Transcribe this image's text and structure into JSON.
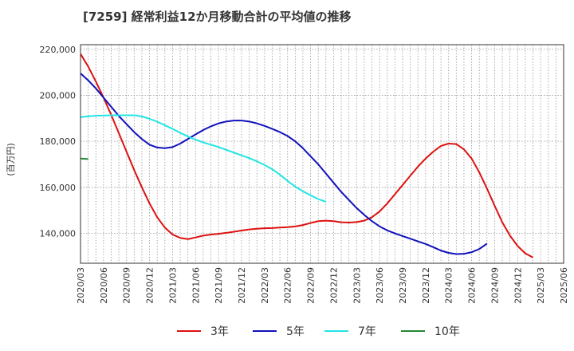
{
  "chart_data": {
    "type": "line",
    "title": "[7259]  経常利益12か月移動合計の平均値の推移",
    "ylabel": "(百万円)",
    "xlabel": "",
    "ylim": [
      127000,
      222000
    ],
    "yticks": [
      140000,
      160000,
      180000,
      200000,
      220000
    ],
    "ytick_labels": [
      "140,000",
      "160,000",
      "180,000",
      "200,000",
      "220,000"
    ],
    "xlim": [
      0,
      63
    ],
    "xtick_labels": [
      "2020/03",
      "2020/06",
      "2020/09",
      "2020/12",
      "2021/03",
      "2021/06",
      "2021/09",
      "2021/12",
      "2022/03",
      "2022/06",
      "2022/09",
      "2022/12",
      "2023/03",
      "2023/06",
      "2023/09",
      "2023/12",
      "2024/03",
      "2024/06",
      "2024/09",
      "2024/12",
      "2025/03",
      "2025/06"
    ],
    "grid": true,
    "legend_position": "bottom",
    "series": [
      {
        "name": "3年",
        "color": "#dd1111",
        "points": [
          [
            0,
            218000
          ],
          [
            1,
            212500
          ],
          [
            2,
            206000
          ],
          [
            3,
            199000
          ],
          [
            4,
            191500
          ],
          [
            5,
            183500
          ],
          [
            6,
            175500
          ],
          [
            7,
            167500
          ],
          [
            8,
            160000
          ],
          [
            9,
            153000
          ],
          [
            10,
            147000
          ],
          [
            11,
            142500
          ],
          [
            12,
            139500
          ],
          [
            13,
            138000
          ],
          [
            14,
            137500
          ],
          [
            15,
            138200
          ],
          [
            16,
            139000
          ],
          [
            17,
            139500
          ],
          [
            18,
            139800
          ],
          [
            19,
            140200
          ],
          [
            20,
            140700
          ],
          [
            21,
            141200
          ],
          [
            22,
            141700
          ],
          [
            23,
            142000
          ],
          [
            24,
            142200
          ],
          [
            25,
            142300
          ],
          [
            26,
            142500
          ],
          [
            27,
            142700
          ],
          [
            28,
            143000
          ],
          [
            29,
            143600
          ],
          [
            30,
            144500
          ],
          [
            31,
            145300
          ],
          [
            32,
            145500
          ],
          [
            33,
            145300
          ],
          [
            34,
            144800
          ],
          [
            35,
            144700
          ],
          [
            36,
            144900
          ],
          [
            37,
            145500
          ],
          [
            38,
            147000
          ],
          [
            39,
            149500
          ],
          [
            40,
            153000
          ],
          [
            41,
            157000
          ],
          [
            42,
            161000
          ],
          [
            43,
            165000
          ],
          [
            44,
            169000
          ],
          [
            45,
            172500
          ],
          [
            46,
            175500
          ],
          [
            47,
            178000
          ],
          [
            48,
            179000
          ],
          [
            49,
            178800
          ],
          [
            50,
            176500
          ],
          [
            51,
            172500
          ],
          [
            52,
            166500
          ],
          [
            53,
            159500
          ],
          [
            54,
            152000
          ],
          [
            55,
            144800
          ],
          [
            56,
            139000
          ],
          [
            57,
            134500
          ],
          [
            58,
            131300
          ],
          [
            59,
            129500
          ]
        ]
      },
      {
        "name": "5年",
        "color": "#1111bb",
        "points": [
          [
            0,
            209500
          ],
          [
            1,
            206500
          ],
          [
            2,
            203000
          ],
          [
            3,
            199000
          ],
          [
            4,
            195000
          ],
          [
            5,
            191000
          ],
          [
            6,
            187500
          ],
          [
            7,
            184000
          ],
          [
            8,
            181000
          ],
          [
            9,
            178500
          ],
          [
            10,
            177300
          ],
          [
            11,
            177000
          ],
          [
            12,
            177500
          ],
          [
            13,
            179000
          ],
          [
            14,
            181000
          ],
          [
            15,
            183000
          ],
          [
            16,
            184900
          ],
          [
            17,
            186500
          ],
          [
            18,
            187800
          ],
          [
            19,
            188600
          ],
          [
            20,
            189000
          ],
          [
            21,
            189000
          ],
          [
            22,
            188600
          ],
          [
            23,
            187800
          ],
          [
            24,
            186700
          ],
          [
            25,
            185400
          ],
          [
            26,
            184000
          ],
          [
            27,
            182300
          ],
          [
            28,
            180000
          ],
          [
            29,
            177000
          ],
          [
            30,
            173500
          ],
          [
            31,
            170000
          ],
          [
            32,
            166000
          ],
          [
            33,
            162000
          ],
          [
            34,
            158000
          ],
          [
            35,
            154500
          ],
          [
            36,
            151000
          ],
          [
            37,
            148000
          ],
          [
            38,
            145300
          ],
          [
            39,
            143000
          ],
          [
            40,
            141300
          ],
          [
            41,
            140000
          ],
          [
            42,
            138800
          ],
          [
            43,
            137700
          ],
          [
            44,
            136500
          ],
          [
            45,
            135400
          ],
          [
            46,
            134000
          ],
          [
            47,
            132500
          ],
          [
            48,
            131500
          ],
          [
            49,
            131000
          ],
          [
            50,
            131100
          ],
          [
            51,
            131800
          ],
          [
            52,
            133200
          ],
          [
            53,
            135500
          ]
        ]
      },
      {
        "name": "7年",
        "color": "#22e5e5",
        "points": [
          [
            0,
            190500
          ],
          [
            1,
            190900
          ],
          [
            2,
            191100
          ],
          [
            3,
            191200
          ],
          [
            4,
            191300
          ],
          [
            5,
            191300
          ],
          [
            6,
            191300
          ],
          [
            7,
            191300
          ],
          [
            8,
            190800
          ],
          [
            9,
            189800
          ],
          [
            10,
            188500
          ],
          [
            11,
            187000
          ],
          [
            12,
            185400
          ],
          [
            13,
            183700
          ],
          [
            14,
            182100
          ],
          [
            15,
            180700
          ],
          [
            16,
            179500
          ],
          [
            17,
            178500
          ],
          [
            18,
            177500
          ],
          [
            19,
            176300
          ],
          [
            20,
            175100
          ],
          [
            21,
            173900
          ],
          [
            22,
            172700
          ],
          [
            23,
            171300
          ],
          [
            24,
            169700
          ],
          [
            25,
            167900
          ],
          [
            26,
            165500
          ],
          [
            27,
            162800
          ],
          [
            28,
            160300
          ],
          [
            29,
            158300
          ],
          [
            30,
            156500
          ],
          [
            31,
            154900
          ],
          [
            32,
            153700
          ]
        ]
      },
      {
        "name": "10年",
        "color": "#228833",
        "points": [
          [
            0,
            172500
          ],
          [
            1,
            172300
          ]
        ]
      }
    ]
  }
}
